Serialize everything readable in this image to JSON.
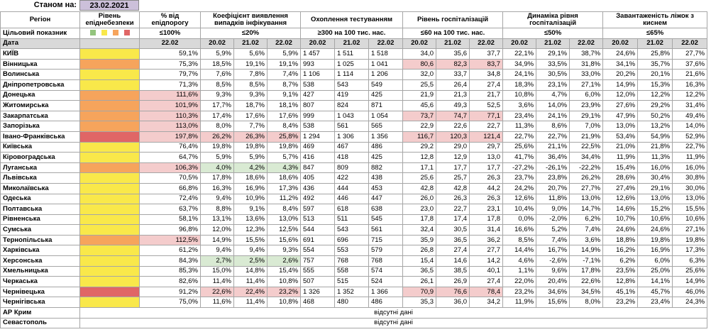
{
  "top": {
    "label": "Станом на:",
    "date": "23.02.2021"
  },
  "header": {
    "columns": [
      "Регіон",
      "Рівень епіднебезпеки",
      "% від епідпорогу",
      "Коефіцієнт виявлення випадків інфікування",
      "Охоплення тестуванням",
      "Рівень госпіталізацій",
      "Динаміка рівня госпіталізацій",
      "Завантаженість ліжок з киснем"
    ]
  },
  "target": {
    "cells": [
      "Цільовий показник",
      "≤100%",
      "≤20%",
      "≥300 на 100 тис. нас.",
      "≤60 на 100 тис. нас.",
      "≤50%",
      "≤65%"
    ]
  },
  "dates": [
    "Дата",
    "22.02",
    "20.02",
    "21.02",
    "22.02",
    "20.02",
    "21.02",
    "22.02",
    "20.02",
    "21.02",
    "22.02",
    "20.02",
    "21.02",
    "22.02",
    "20.02",
    "21.02",
    "22.02"
  ],
  "level_legend": [
    "#93c47d",
    "#f9e84a",
    "#f6a45c",
    "#e06666"
  ],
  "rows": [
    {
      "region": "КИЇВ",
      "level_color": "#f9e84a",
      "cells": [
        "59,1%",
        "5,9%",
        "5,6%",
        "5,9%",
        "1 457",
        "1 511",
        "1 518",
        "34,0",
        "35,6",
        "37,7",
        "22,1%",
        "29,1%",
        "38,7%",
        "24,6%",
        "25,8%",
        "27,7%"
      ]
    },
    {
      "region": "Вінницька",
      "level_color": "#f6a45c",
      "cells": [
        "75,3%",
        "18,5%",
        "19,1%",
        "19,1%",
        "993",
        "1 025",
        "1 041",
        "80,6",
        "82,3",
        "83,7",
        "34,9%",
        "33,5%",
        "31,8%",
        "34,1%",
        "35,7%",
        "37,6%"
      ],
      "fills": [
        null,
        null,
        null,
        null,
        null,
        null,
        null,
        "#f4cccc",
        "#f4cccc",
        "#f4cccc",
        null,
        null,
        null,
        null,
        null,
        null
      ]
    },
    {
      "region": "Волинська",
      "level_color": "#f9e84a",
      "cells": [
        "79,7%",
        "7,6%",
        "7,8%",
        "7,4%",
        "1 106",
        "1 114",
        "1 206",
        "32,0",
        "33,7",
        "34,8",
        "24,1%",
        "30,5%",
        "33,0%",
        "20,2%",
        "20,1%",
        "21,6%"
      ]
    },
    {
      "region": "Дніпропетровська",
      "level_color": "#f9e84a",
      "cells": [
        "71,3%",
        "8,5%",
        "8,5%",
        "8,7%",
        "538",
        "543",
        "549",
        "25,5",
        "26,4",
        "27,4",
        "18,3%",
        "23,1%",
        "27,1%",
        "14,9%",
        "15,3%",
        "16,3%"
      ]
    },
    {
      "region": "Донецька",
      "level_color": "#f6a45c",
      "cells": [
        "111,6%",
        "9,3%",
        "9,3%",
        "9,1%",
        "427",
        "419",
        "425",
        "21,9",
        "21,3",
        "21,7",
        "10,8%",
        "4,7%",
        "6,0%",
        "12,0%",
        "12,2%",
        "12,2%"
      ],
      "fills": [
        "#f4cccc",
        null,
        null,
        null,
        null,
        null,
        null,
        null,
        null,
        null,
        null,
        null,
        null,
        null,
        null,
        null
      ]
    },
    {
      "region": "Житомирська",
      "level_color": "#f6a45c",
      "cells": [
        "101,9%",
        "17,7%",
        "18,7%",
        "18,1%",
        "807",
        "824",
        "871",
        "45,6",
        "49,3",
        "52,5",
        "3,6%",
        "14,0%",
        "23,9%",
        "27,6%",
        "29,2%",
        "31,4%"
      ],
      "fills": [
        "#f4cccc",
        null,
        null,
        null,
        null,
        null,
        null,
        null,
        null,
        null,
        null,
        null,
        null,
        null,
        null,
        null
      ]
    },
    {
      "region": "Закарпатська",
      "level_color": "#f6a45c",
      "cells": [
        "110,3%",
        "17,4%",
        "17,6%",
        "17,6%",
        "999",
        "1 043",
        "1 054",
        "73,7",
        "74,7",
        "77,1",
        "23,4%",
        "24,1%",
        "29,1%",
        "47,9%",
        "50,2%",
        "49,4%"
      ],
      "fills": [
        "#f4cccc",
        null,
        null,
        null,
        null,
        null,
        null,
        "#f4cccc",
        "#f4cccc",
        "#f4cccc",
        null,
        null,
        null,
        null,
        null,
        null
      ]
    },
    {
      "region": "Запорізька",
      "level_color": "#f6a45c",
      "cells": [
        "113,0%",
        "8,0%",
        "7,7%",
        "8,4%",
        "538",
        "561",
        "565",
        "22,9",
        "22,6",
        "22,7",
        "11,3%",
        "8,6%",
        "7,0%",
        "13,0%",
        "13,2%",
        "14,0%"
      ],
      "fills": [
        "#f4cccc",
        null,
        null,
        null,
        null,
        null,
        null,
        null,
        null,
        null,
        null,
        null,
        null,
        null,
        null,
        null
      ]
    },
    {
      "region": "Івано-Франківська",
      "level_color": "#e06666",
      "cells": [
        "197,8%",
        "26,2%",
        "26,3%",
        "25,8%",
        "1 294",
        "1 306",
        "1 356",
        "116,7",
        "120,3",
        "121,4",
        "22,7%",
        "22,7%",
        "21,9%",
        "53,4%",
        "54,9%",
        "52,9%"
      ],
      "fills": [
        "#f4cccc",
        "#f4cccc",
        "#f4cccc",
        "#f4cccc",
        null,
        null,
        null,
        "#f4cccc",
        "#f4cccc",
        "#f4cccc",
        null,
        null,
        null,
        null,
        null,
        null
      ]
    },
    {
      "region": "Київська",
      "level_color": "#f9e84a",
      "cells": [
        "76,4%",
        "19,8%",
        "19,8%",
        "19,8%",
        "469",
        "467",
        "486",
        "29,2",
        "29,0",
        "29,7",
        "25,6%",
        "21,1%",
        "22,5%",
        "21,0%",
        "21,8%",
        "22,7%"
      ]
    },
    {
      "region": "Кіровоградська",
      "level_color": "#f9e84a",
      "cells": [
        "64,7%",
        "5,9%",
        "5,9%",
        "5,7%",
        "416",
        "418",
        "425",
        "12,8",
        "12,9",
        "13,0",
        "41,7%",
        "36,4%",
        "34,4%",
        "11,9%",
        "11,3%",
        "11,9%"
      ]
    },
    {
      "region": "Луганська",
      "level_color": "#f6a45c",
      "cells": [
        "106,3%",
        "4,0%",
        "4,2%",
        "4,3%",
        "847",
        "809",
        "882",
        "17,1",
        "17,7",
        "17,7",
        "-27,2%",
        "-26,1%",
        "-22,2%",
        "15,4%",
        "16,0%",
        "16,0%"
      ],
      "fills": [
        "#f4cccc",
        "#d9ead3",
        "#d9ead3",
        "#d9ead3",
        null,
        null,
        null,
        null,
        null,
        null,
        null,
        null,
        null,
        null,
        null,
        null
      ]
    },
    {
      "region": "Львівська",
      "level_color": "#f9e84a",
      "cells": [
        "70,5%",
        "17,8%",
        "18,6%",
        "18,6%",
        "405",
        "422",
        "438",
        "25,6",
        "25,7",
        "26,3",
        "23,7%",
        "23,8%",
        "26,2%",
        "28,6%",
        "30,4%",
        "30,8%"
      ]
    },
    {
      "region": "Миколаївська",
      "level_color": "#f9e84a",
      "cells": [
        "66,8%",
        "16,3%",
        "16,9%",
        "17,3%",
        "436",
        "444",
        "453",
        "42,8",
        "42,8",
        "44,2",
        "24,2%",
        "20,7%",
        "27,7%",
        "27,4%",
        "29,1%",
        "30,0%"
      ]
    },
    {
      "region": "Одеська",
      "level_color": "#f9e84a",
      "cells": [
        "72,4%",
        "9,4%",
        "10,9%",
        "11,2%",
        "492",
        "446",
        "447",
        "26,0",
        "26,3",
        "26,3",
        "12,6%",
        "11,8%",
        "13,0%",
        "12,6%",
        "13,0%",
        "13,0%"
      ]
    },
    {
      "region": "Полтавська",
      "level_color": "#f9e84a",
      "cells": [
        "63,7%",
        "8,8%",
        "9,1%",
        "8,4%",
        "597",
        "618",
        "638",
        "23,0",
        "22,7",
        "23,1",
        "10,4%",
        "9,0%",
        "14,7%",
        "14,6%",
        "15,2%",
        "15,5%"
      ]
    },
    {
      "region": "Рівненська",
      "level_color": "#f9e84a",
      "cells": [
        "58,1%",
        "13,1%",
        "13,6%",
        "13,0%",
        "513",
        "511",
        "545",
        "17,8",
        "17,4",
        "17,8",
        "0,0%",
        "-2,0%",
        "6,2%",
        "10,7%",
        "10,6%",
        "10,6%"
      ]
    },
    {
      "region": "Сумська",
      "level_color": "#f9e84a",
      "cells": [
        "96,8%",
        "12,0%",
        "12,3%",
        "12,5%",
        "544",
        "543",
        "561",
        "32,4",
        "30,5",
        "31,4",
        "16,6%",
        "5,2%",
        "7,4%",
        "24,6%",
        "24,6%",
        "27,1%"
      ]
    },
    {
      "region": "Тернопільська",
      "level_color": "#f6a45c",
      "cells": [
        "112,5%",
        "14,9%",
        "15,5%",
        "15,6%",
        "691",
        "696",
        "715",
        "35,9",
        "36,5",
        "36,2",
        "8,5%",
        "7,4%",
        "3,6%",
        "18,8%",
        "19,8%",
        "19,8%"
      ],
      "fills": [
        "#f4cccc",
        null,
        null,
        null,
        null,
        null,
        null,
        null,
        null,
        null,
        null,
        null,
        null,
        null,
        null,
        null
      ]
    },
    {
      "region": "Харківська",
      "level_color": "#f9e84a",
      "cells": [
        "61,2%",
        "9,4%",
        "9,4%",
        "9,3%",
        "554",
        "553",
        "579",
        "26,8",
        "27,4",
        "27,7",
        "14,4%",
        "16,7%",
        "14,9%",
        "16,2%",
        "16,9%",
        "17,3%"
      ]
    },
    {
      "region": "Херсонська",
      "level_color": "#f9e84a",
      "cells": [
        "84,3%",
        "2,7%",
        "2,5%",
        "2,6%",
        "757",
        "768",
        "768",
        "15,4",
        "14,6",
        "14,2",
        "4,6%",
        "-2,6%",
        "-7,1%",
        "6,2%",
        "6,0%",
        "6,3%"
      ],
      "fills": [
        null,
        "#d9ead3",
        "#d9ead3",
        "#d9ead3",
        null,
        null,
        null,
        null,
        null,
        null,
        null,
        null,
        null,
        null,
        null,
        null
      ]
    },
    {
      "region": "Хмельницька",
      "level_color": "#f9e84a",
      "cells": [
        "85,3%",
        "15,0%",
        "14,8%",
        "15,4%",
        "555",
        "558",
        "574",
        "36,5",
        "38,5",
        "40,1",
        "1,1%",
        "9,6%",
        "17,8%",
        "23,5%",
        "25,0%",
        "25,6%"
      ]
    },
    {
      "region": "Черкаська",
      "level_color": "#f9e84a",
      "cells": [
        "82,6%",
        "11,4%",
        "11,4%",
        "10,8%",
        "507",
        "515",
        "524",
        "26,1",
        "26,9",
        "27,4",
        "22,0%",
        "20,4%",
        "22,6%",
        "12,8%",
        "14,1%",
        "14,9%"
      ]
    },
    {
      "region": "Чернівецька",
      "level_color": "#e06666",
      "cells": [
        "91,2%",
        "22,6%",
        "22,4%",
        "23,2%",
        "1 326",
        "1 352",
        "1 366",
        "70,9",
        "76,6",
        "78,4",
        "23,2%",
        "34,6%",
        "34,5%",
        "45,1%",
        "45,7%",
        "46,0%"
      ],
      "fills": [
        null,
        "#f4cccc",
        "#f4cccc",
        "#f4cccc",
        null,
        null,
        null,
        "#f4cccc",
        "#f4cccc",
        "#f4cccc",
        null,
        null,
        null,
        null,
        null,
        null
      ]
    },
    {
      "region": "Чернігівська",
      "level_color": "#f9e84a",
      "cells": [
        "75,0%",
        "11,6%",
        "11,4%",
        "10,8%",
        "468",
        "480",
        "486",
        "35,3",
        "36,0",
        "34,2",
        "11,9%",
        "15,6%",
        "8,0%",
        "23,2%",
        "23,4%",
        "24,3%"
      ]
    }
  ],
  "missing": [
    {
      "region": "АР Крим",
      "text": "відсутні дані"
    },
    {
      "region": "Севастополь",
      "text": "відсутні дані"
    }
  ]
}
